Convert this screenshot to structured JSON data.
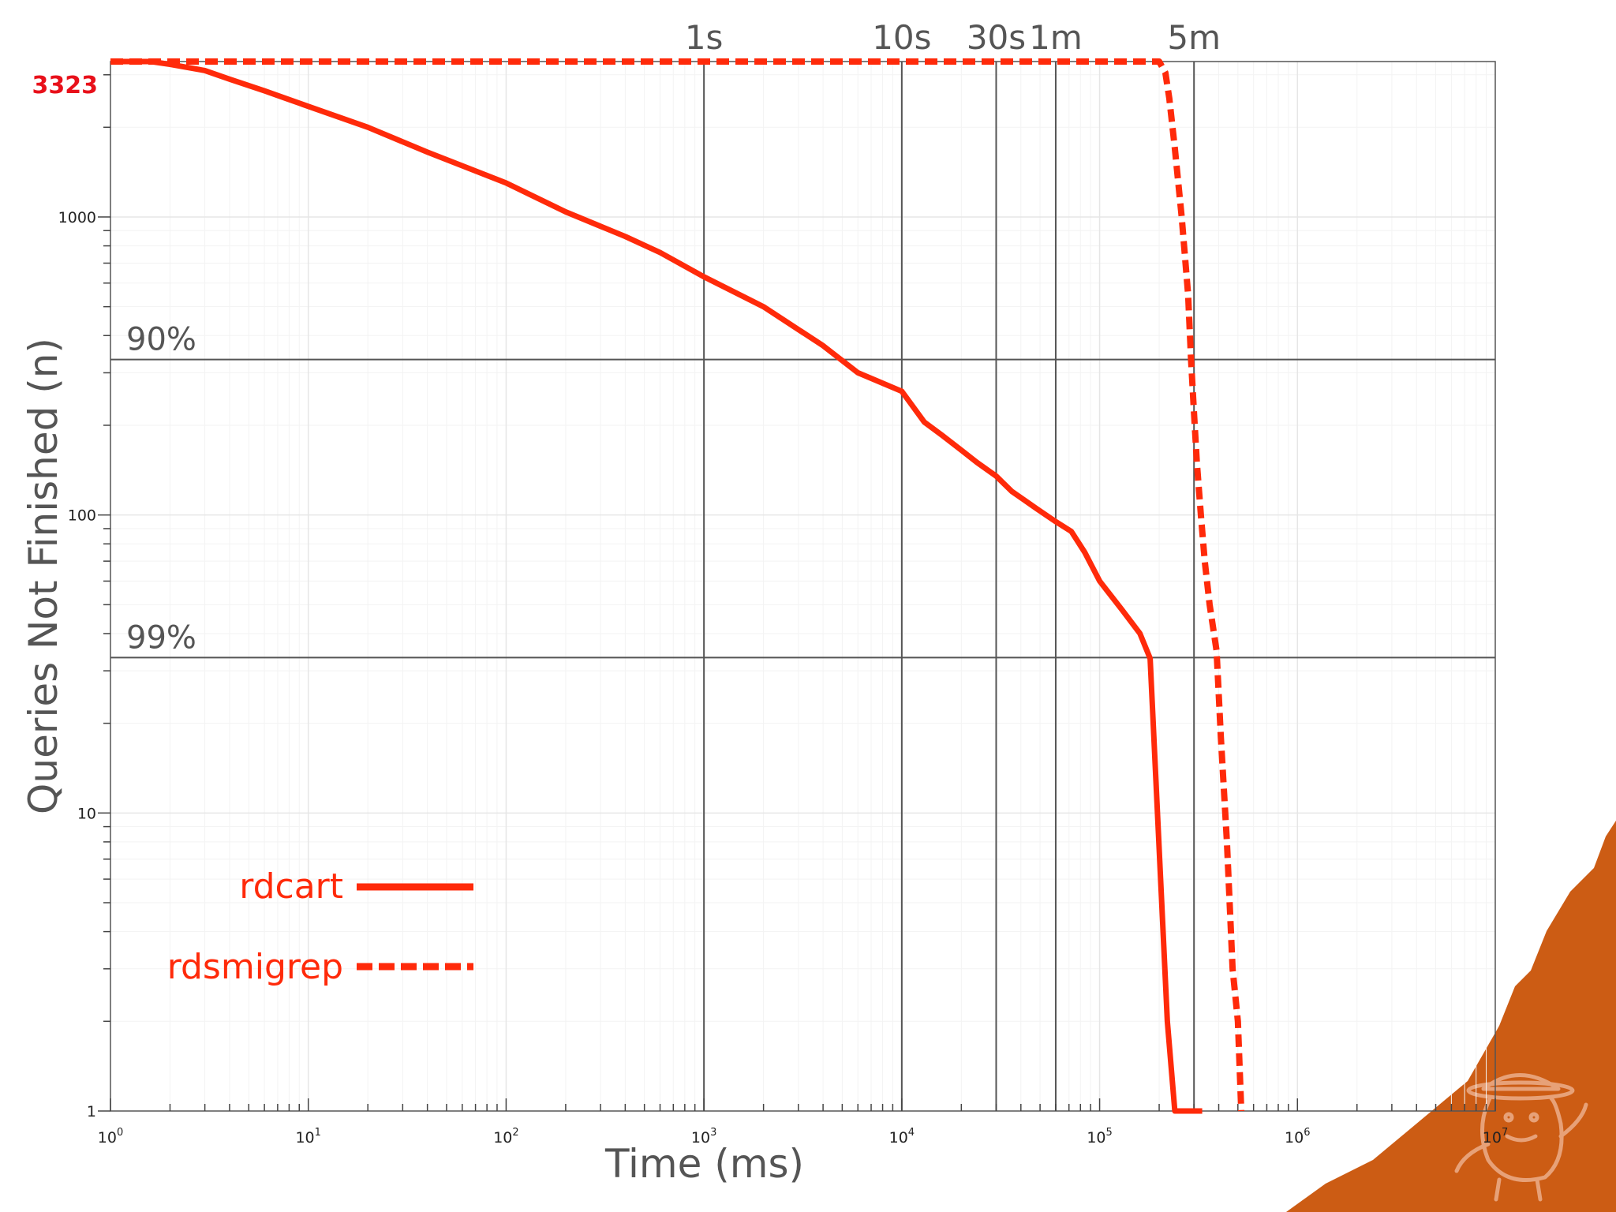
{
  "chart_data": {
    "type": "line",
    "xlabel": "Time (ms)",
    "ylabel": "Queries Not Finished (n)",
    "x_scale": "log",
    "y_scale": "log",
    "xlim": [
      1,
      10000000
    ],
    "ylim": [
      1,
      3323
    ],
    "grid": true,
    "x_ticks": [
      "10^0",
      "10^1",
      "10^2",
      "10^3",
      "10^4",
      "10^5",
      "10^6",
      "10^7"
    ],
    "y_ticks": [
      "1",
      "10",
      "100",
      "1000"
    ],
    "y_max_label": "3323",
    "time_markers": [
      {
        "label": "1s",
        "x": 1000
      },
      {
        "label": "10s",
        "x": 10000
      },
      {
        "label": "30s",
        "x": 30000
      },
      {
        "label": "1m",
        "x": 60000
      },
      {
        "label": "5m",
        "x": 300000
      }
    ],
    "percentile_lines": [
      {
        "label": "90%",
        "y": 332.3
      },
      {
        "label": "99%",
        "y": 33.23
      }
    ],
    "legend_position": "bottom-left",
    "series": [
      {
        "name": "rdcart",
        "style": "solid",
        "color": "#ff2a0a",
        "x": [
          1,
          1.6,
          2,
          3,
          4,
          6,
          10,
          20,
          40,
          100,
          200,
          400,
          600,
          1000,
          2000,
          4000,
          6000,
          10000,
          13000,
          16000,
          20000,
          24000,
          30000,
          36000,
          48000,
          60000,
          72000,
          84000,
          100000,
          130000,
          160000,
          180000,
          220000,
          240000,
          330000
        ],
        "y": [
          3323,
          3323,
          3250,
          3100,
          2900,
          2650,
          2350,
          2000,
          1650,
          1300,
          1040,
          860,
          760,
          630,
          500,
          370,
          300,
          260,
          205,
          185,
          165,
          150,
          135,
          120,
          105,
          95,
          88,
          75,
          60,
          48,
          40,
          33,
          2,
          1,
          1
        ]
      },
      {
        "name": "rdsmigrep",
        "style": "dashed",
        "color": "#ff2a0a",
        "x": [
          1,
          200000,
          215000,
          225000,
          240000,
          260000,
          280000,
          290000,
          300000,
          310000,
          325000,
          340000,
          360000,
          390000,
          410000,
          440000,
          470000,
          500000,
          520000
        ],
        "y": [
          3323,
          3323,
          3050,
          2500,
          1700,
          1000,
          550,
          330,
          220,
          150,
          100,
          70,
          50,
          35,
          18,
          8,
          3,
          2,
          1
        ]
      }
    ]
  }
}
